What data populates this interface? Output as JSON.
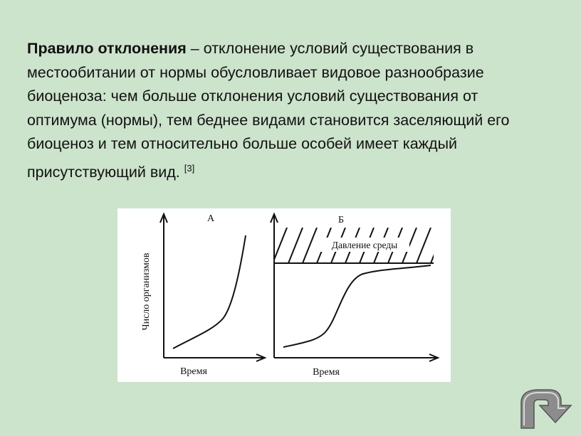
{
  "slide": {
    "paragraph": {
      "term": "Правило отклонения",
      "text": " – отклонение условий существования в местообитании от нормы обусловливает видовое разнообразие биоценоза: чем больше отклонения условий существования от оптимума (нормы), тем беднее видами становится заселяющий его биоценоз и тем относительно больше особей имеет каждый присутствующий вид. ",
      "ref": "[3]"
    },
    "figure": {
      "panel_a": {
        "label": "А",
        "y_axis": "Число организмов",
        "x_axis": "Время"
      },
      "panel_b": {
        "label": "Б",
        "x_axis": "Время",
        "limit": "Давление среды"
      }
    }
  }
}
